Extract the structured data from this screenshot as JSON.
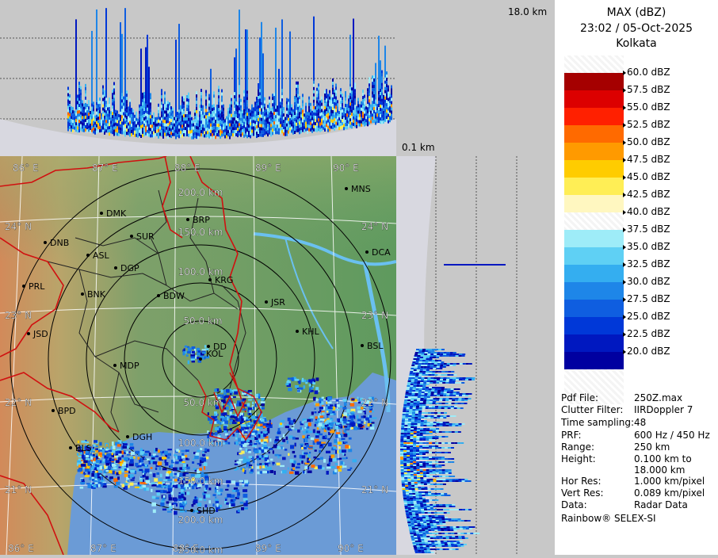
{
  "header": {
    "product": "MAX (dBZ)",
    "datetime": "23:02 / 05-Oct-2025",
    "station": "Kolkata"
  },
  "profile": {
    "top_height": "18.0 km",
    "bottom_height": "0.1 km"
  },
  "legend": {
    "colors": [
      "#ffffff",
      "#a50000",
      "#dc0000",
      "#ff2000",
      "#ff6a00",
      "#ff9a00",
      "#ffcc00",
      "#ffee55",
      "#fff7c0",
      "#ffffff",
      "#9eecf8",
      "#5fd0f4",
      "#34aef0",
      "#1e86e8",
      "#0f5ee0",
      "#0038d8",
      "#0018c0",
      "#0000a0"
    ],
    "labels": [
      "60.0 dBZ",
      "57.5 dBZ",
      "55.0 dBZ",
      "52.5 dBZ",
      "50.0 dBZ",
      "47.5 dBZ",
      "45.0 dBZ",
      "42.5 dBZ",
      "40.0 dBZ",
      "37.5 dBZ",
      "35.0 dBZ",
      "32.5 dBZ",
      "30.0 dBZ",
      "27.5 dBZ",
      "25.0 dBZ",
      "22.5 dBZ",
      "20.0 dBZ"
    ]
  },
  "info": [
    {
      "key": "Pdf File:",
      "value": "250Z.max"
    },
    {
      "key": "Clutter Filter:",
      "value": "IIRDoppler 7"
    },
    {
      "key": "Time sampling:",
      "value": "48"
    },
    {
      "key": "PRF:",
      "value": "600 Hz / 450 Hz"
    },
    {
      "key": "Range:",
      "value": "250 km"
    },
    {
      "key": "Height:",
      "value": "0.100 km to"
    },
    {
      "key": "",
      "value": "18.000 km"
    },
    {
      "key": "Hor Res:",
      "value": "1.000 km/pixel"
    },
    {
      "key": "Vert Res:",
      "value": "0.089 km/pixel"
    },
    {
      "key": "Data:",
      "value": "Radar Data"
    }
  ],
  "footer": "Rainbow® SELEX-SI",
  "map": {
    "lon_top": [
      "86° E",
      "87° E",
      "88° E",
      "89° E",
      "90° E"
    ],
    "lon_bottom": [
      "86° E",
      "87° E",
      "88° E",
      "89° E",
      "90° E"
    ],
    "lat_left": [
      "24° N",
      "23° N",
      "22° N",
      "21° N"
    ],
    "lat_right": [
      "24° N",
      "23° N",
      "22° N",
      "21° N"
    ],
    "rings": [
      "50.0 km",
      "100.0 km",
      "150.0 km",
      "200.0 km",
      "250.0 km"
    ],
    "rings_south": [
      "50.0 km",
      "100.0 km",
      "150.0 km",
      "200.0 km",
      "250.0 km"
    ],
    "cities": [
      "MNS",
      "DMK",
      "BRP",
      "DNB",
      "SUR",
      "ASL",
      "DCA",
      "DGP",
      "KRG",
      "PRL",
      "BNK",
      "BDW",
      "JSR",
      "JSD",
      "DD",
      "KHL",
      "BSL",
      "MDP",
      "BPD",
      "DGH",
      "BLS",
      "SHD"
    ],
    "radar_site": "KOL"
  }
}
